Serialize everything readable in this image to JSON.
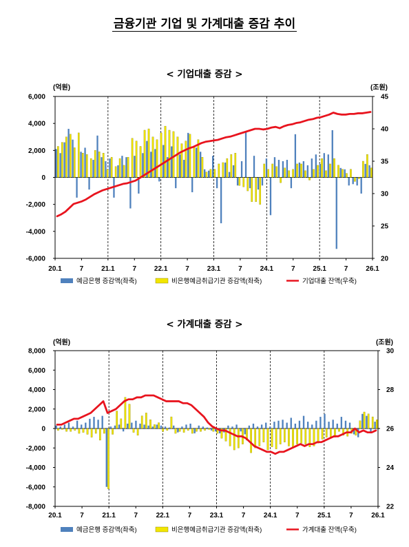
{
  "page": {
    "title": "금융기관 기업 및 가계대출 증감 추이"
  },
  "chart_data": [
    {
      "type": "bar",
      "title": "< 기업대출 증감 >",
      "y_left_unit": "(억원)",
      "y_right_unit": "(조원)",
      "y_left_range": [
        -6000,
        6000
      ],
      "y_left_ticks": [
        6000,
        4000,
        2000,
        0,
        -2000,
        -4000,
        -6000
      ],
      "y_left_tick_labels": [
        "6,000",
        "4,000",
        "2,000",
        "0",
        "-2,000",
        "-4,000",
        "-6,000"
      ],
      "y_right_range": [
        20,
        45
      ],
      "y_right_ticks": [
        45,
        40,
        35,
        30,
        25,
        20
      ],
      "y_right_tick_labels": [
        "45",
        "40",
        "35",
        "30",
        "25",
        "20"
      ],
      "x_tick_labels": [
        "20.1",
        "7",
        "21.1",
        "7",
        "22.1",
        "7",
        "23.1",
        "7",
        "24.1",
        "7",
        "25.1",
        "7",
        "26.1"
      ],
      "year_dividers": [
        "21.1",
        "22.1",
        "23.1",
        "24.1",
        "25.1"
      ],
      "legend": [
        "예금은행 증감액(좌축)",
        "비은행예금취급기관 증감액(좌축)",
        "기업대출 잔액(우축)"
      ],
      "series": [
        {
          "name": "예금은행 증감액(좌축)",
          "kind": "bar",
          "axis": "left",
          "color": "#4f81bd",
          "values": [
            2100,
            1800,
            2600,
            3600,
            2800,
            -1500,
            1900,
            2200,
            -900,
            1300,
            3100,
            1500,
            1200,
            1400,
            -1500,
            900,
            1600,
            1500,
            -2300,
            1600,
            -1200,
            1800,
            2700,
            1900,
            2100,
            -300,
            2400,
            1500,
            2300,
            -800,
            1700,
            1300,
            3300,
            -1100,
            2200,
            1900,
            600,
            500,
            1600,
            -800,
            -3400,
            1100,
            400,
            900,
            -600,
            1200,
            3400,
            -800,
            1600,
            -900,
            -600,
            1400,
            -2800,
            1500,
            1300,
            1200,
            1300,
            -800,
            3200,
            1100,
            1200,
            900,
            1400,
            1700,
            1000,
            1800,
            1700,
            3500,
            -5300,
            700,
            600,
            -600,
            -500,
            -600,
            -1200,
            1000,
            900
          ]
        },
        {
          "name": "비은행예금취급기관 증감액(좌축)",
          "kind": "bar",
          "axis": "left",
          "color": "#f2e600",
          "values": [
            2300,
            2600,
            3000,
            3200,
            2200,
            3300,
            1800,
            1700,
            1400,
            2000,
            1900,
            1800,
            600,
            1500,
            800,
            1400,
            900,
            1500,
            2900,
            2700,
            2300,
            3500,
            3600,
            3000,
            2800,
            3300,
            3800,
            3500,
            3400,
            3000,
            2500,
            2700,
            3200,
            2300,
            2800,
            1500,
            400,
            600,
            600,
            1000,
            1100,
            1400,
            1700,
            1800,
            -600,
            -700,
            -1000,
            -1800,
            -1800,
            -2000,
            1000,
            600,
            1000,
            800,
            -400,
            700,
            500,
            600,
            1000,
            1000,
            500,
            -200,
            600,
            900,
            1400,
            500,
            1000,
            1400,
            900,
            600,
            300,
            600,
            -300,
            -100,
            1200,
            1700,
            700
          ]
        },
        {
          "name": "기업대출 잔액(우축)",
          "kind": "line",
          "axis": "right",
          "color": "#e8141e",
          "values": [
            26.5,
            26.8,
            27.2,
            27.8,
            28.4,
            28.6,
            28.8,
            29.1,
            29.5,
            29.9,
            30.2,
            30.5,
            30.7,
            30.9,
            31.1,
            31.3,
            31.5,
            31.6,
            31.8,
            32.0,
            32.4,
            32.8,
            33.2,
            33.6,
            34.0,
            34.4,
            34.8,
            35.2,
            35.6,
            36.0,
            36.4,
            36.7,
            37.0,
            37.2,
            37.5,
            37.8,
            38.0,
            38.1,
            38.2,
            38.3,
            38.5,
            38.7,
            38.8,
            39.0,
            39.2,
            39.4,
            39.6,
            39.8,
            40.0,
            40.0,
            39.9,
            40.0,
            40.2,
            40.3,
            40.1,
            40.4,
            40.6,
            40.7,
            40.9,
            41.0,
            41.2,
            41.4,
            41.5,
            41.7,
            41.8,
            42.0,
            42.2,
            42.5,
            42.3,
            42.2,
            42.2,
            42.3,
            42.3,
            42.4,
            42.4,
            42.5,
            42.6
          ]
        }
      ]
    },
    {
      "type": "bar",
      "title": "< 가계대출 증감 >",
      "y_left_unit": "(억원)",
      "y_right_unit": "(조원)",
      "y_left_range": [
        -8000,
        8000
      ],
      "y_left_ticks": [
        8000,
        6000,
        4000,
        2000,
        0,
        -2000,
        -4000,
        -6000,
        -8000
      ],
      "y_left_tick_labels": [
        "8,000",
        "6,000",
        "4,000",
        "2,000",
        "0",
        "-2,000",
        "-4,000",
        "-6,000",
        "-8,000"
      ],
      "y_right_range": [
        22,
        30
      ],
      "y_right_ticks": [
        30,
        28,
        26,
        24,
        22
      ],
      "y_right_tick_labels": [
        "30",
        "28",
        "26",
        "24",
        "22"
      ],
      "x_tick_labels": [
        "20.1",
        "7",
        "21.1",
        "7",
        "22.1",
        "7",
        "23.1",
        "7",
        "24.1",
        "7",
        "25.1",
        "7",
        "26.1"
      ],
      "year_dividers": [
        "21.1",
        "22.1",
        "23.1",
        "24.1",
        "25.1"
      ],
      "legend": [
        "예금은행 증감액(좌축)",
        "비은행예금취급기관 증감액(좌축)",
        "가계대출 잔액(우축)"
      ],
      "series": [
        {
          "name": "예금은행 증감액(좌축)",
          "kind": "bar",
          "axis": "left",
          "color": "#4f81bd",
          "values": [
            300,
            200,
            400,
            600,
            200,
            800,
            400,
            600,
            1000,
            1200,
            900,
            1300,
            -6000,
            200,
            300,
            400,
            -300,
            500,
            600,
            800,
            500,
            400,
            300,
            200,
            400,
            300,
            200,
            100,
            300,
            -400,
            200,
            400,
            500,
            -500,
            300,
            200,
            100,
            -200,
            -300,
            -500,
            -400,
            300,
            200,
            400,
            -300,
            -600,
            300,
            500,
            200,
            400,
            600,
            200,
            700,
            800,
            900,
            600,
            1100,
            500,
            800,
            1300,
            700,
            400,
            800,
            1200,
            1500,
            700,
            900,
            500,
            1200,
            800,
            600,
            -600,
            -900,
            1500,
            1300,
            -500,
            700
          ]
        },
        {
          "name": "비은행예금취급기관 증감액(좌축)",
          "kind": "bar",
          "axis": "left",
          "color": "#f2e600",
          "values": [
            -200,
            -100,
            -300,
            -300,
            -200,
            -500,
            -400,
            -600,
            -900,
            -500,
            -1200,
            -500,
            -6200,
            -600,
            1800,
            1000,
            3200,
            2500,
            -400,
            -700,
            1300,
            1600,
            900,
            400,
            600,
            -300,
            -200,
            1200,
            -500,
            -300,
            -400,
            -200,
            -500,
            -300,
            -300,
            -200,
            -100,
            -300,
            -500,
            -1000,
            -1300,
            -1800,
            -2200,
            -2000,
            -1600,
            -1200,
            -2500,
            -2000,
            -1800,
            -1400,
            -2200,
            -1900,
            -2100,
            -1600,
            -1400,
            -1800,
            -2000,
            -1600,
            -1500,
            -1600,
            -1900,
            -1800,
            -1500,
            -1100,
            -900,
            -900,
            -900,
            -300,
            -700,
            -800,
            -500,
            -700,
            800,
            1700,
            1500,
            1200,
            900
          ]
        },
        {
          "name": "가계대출 잔액(우축)",
          "kind": "line",
          "axis": "right",
          "color": "#e8141e",
          "values": [
            26.2,
            26.2,
            26.3,
            26.4,
            26.5,
            26.5,
            26.6,
            26.7,
            26.8,
            27.0,
            27.2,
            27.4,
            26.8,
            26.9,
            27.0,
            27.2,
            27.4,
            27.5,
            27.5,
            27.6,
            27.6,
            27.7,
            27.7,
            27.7,
            27.6,
            27.5,
            27.4,
            27.4,
            27.4,
            27.4,
            27.3,
            27.3,
            27.2,
            27.0,
            26.8,
            26.6,
            26.3,
            26.1,
            26.0,
            25.9,
            25.9,
            25.8,
            25.7,
            25.6,
            25.6,
            25.5,
            25.3,
            25.1,
            25.0,
            24.9,
            24.8,
            24.8,
            24.7,
            24.8,
            24.8,
            24.9,
            25.0,
            25.1,
            25.2,
            25.1,
            25.2,
            25.2,
            25.3,
            25.3,
            25.4,
            25.5,
            25.6,
            25.6,
            25.7,
            25.8,
            25.8,
            26.0,
            25.8,
            25.9,
            25.8,
            25.8,
            25.9
          ]
        }
      ]
    }
  ]
}
